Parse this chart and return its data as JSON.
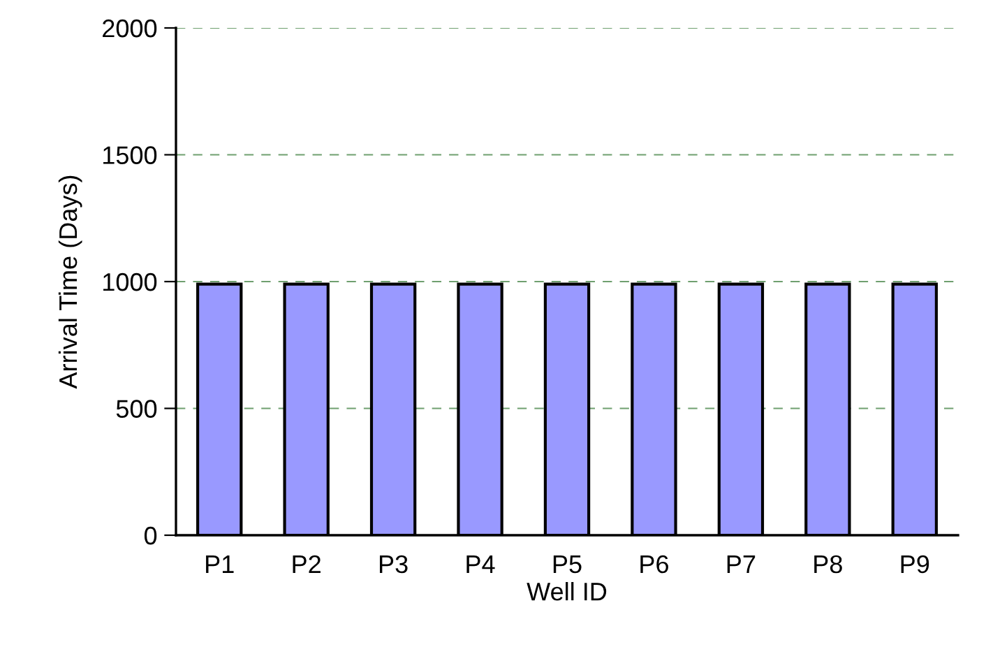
{
  "chart_data": {
    "type": "bar",
    "xlabel": "Well ID",
    "ylabel": "Arrival Time (Days)",
    "categories": [
      "P1",
      "P2",
      "P3",
      "P4",
      "P5",
      "P6",
      "P7",
      "P8",
      "P9"
    ],
    "values": [
      990,
      990,
      990,
      990,
      990,
      990,
      990,
      990,
      990
    ],
    "color": "#9999ff",
    "ylim": [
      0,
      2000
    ],
    "yticks": [
      0,
      500,
      1000,
      1500,
      2000
    ],
    "grid": "y"
  }
}
